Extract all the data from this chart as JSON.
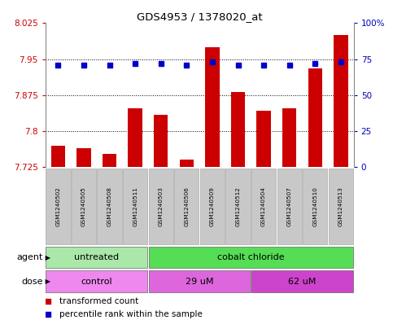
{
  "title": "GDS4953 / 1378020_at",
  "samples": [
    "GSM1240502",
    "GSM1240505",
    "GSM1240508",
    "GSM1240511",
    "GSM1240503",
    "GSM1240506",
    "GSM1240509",
    "GSM1240512",
    "GSM1240504",
    "GSM1240507",
    "GSM1240510",
    "GSM1240513"
  ],
  "bar_values": [
    7.77,
    7.765,
    7.752,
    7.848,
    7.833,
    7.74,
    7.975,
    7.882,
    7.843,
    7.848,
    7.93,
    8.0
  ],
  "percentile_values": [
    71,
    71,
    71,
    72,
    72,
    71,
    73,
    71,
    71,
    71,
    72,
    73
  ],
  "bar_color": "#cc0000",
  "percentile_color": "#0000cc",
  "ylim_left": [
    7.725,
    8.025
  ],
  "ylim_right": [
    0,
    100
  ],
  "yticks_left": [
    7.725,
    7.8,
    7.875,
    7.95,
    8.025
  ],
  "yticks_left_labels": [
    "7.725",
    "7.8",
    "7.875",
    "7.95",
    "8.025"
  ],
  "yticks_right": [
    0,
    25,
    50,
    75,
    100
  ],
  "yticks_right_labels": [
    "0",
    "25",
    "50",
    "75",
    "100%"
  ],
  "agent_groups": [
    {
      "label": "untreated",
      "start": 0,
      "end": 4,
      "color": "#aae8aa"
    },
    {
      "label": "cobalt chloride",
      "start": 4,
      "end": 12,
      "color": "#55dd55"
    }
  ],
  "dose_groups": [
    {
      "label": "control",
      "start": 0,
      "end": 4,
      "color": "#ee88ee"
    },
    {
      "label": "29 uM",
      "start": 4,
      "end": 8,
      "color": "#dd66dd"
    },
    {
      "label": "62 uM",
      "start": 8,
      "end": 12,
      "color": "#cc44cc"
    }
  ],
  "legend_bar_label": "transformed count",
  "legend_pct_label": "percentile rank within the sample",
  "agent_label": "agent",
  "dose_label": "dose",
  "bg_color": "#ffffff",
  "sample_box_color": "#c8c8c8"
}
